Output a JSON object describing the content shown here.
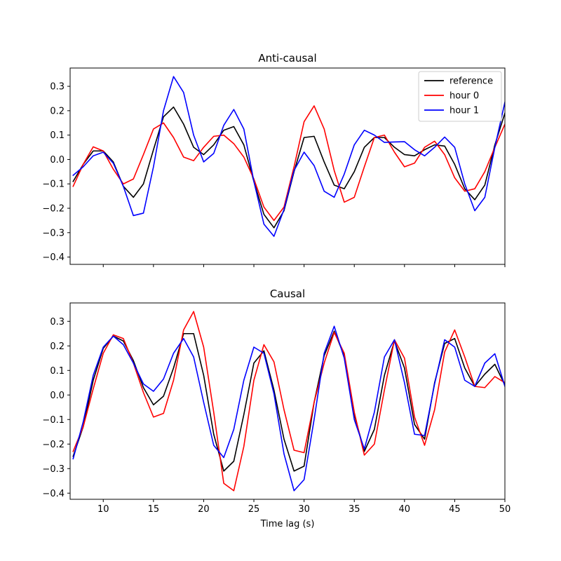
{
  "chart_data": [
    {
      "type": "line",
      "title": "Anti-causal",
      "xlabel": "",
      "ylabel": "",
      "xlim": [
        6.7,
        50
      ],
      "ylim": [
        -0.43,
        0.375
      ],
      "xticks": [
        10,
        15,
        20,
        25,
        30,
        35,
        40,
        45,
        50
      ],
      "show_xtick_labels": false,
      "yticks": [
        -0.4,
        -0.3,
        -0.2,
        -0.1,
        0.0,
        0.1,
        0.2,
        0.3
      ],
      "ytick_labels": [
        "−0.4",
        "−0.3",
        "−0.2",
        "−0.1",
        "0.0",
        "0.1",
        "0.2",
        "0.3"
      ],
      "legend_position": "top-right",
      "x": [
        7,
        8,
        9,
        10,
        11,
        12,
        13,
        14,
        15,
        16,
        17,
        18,
        19,
        20,
        21,
        22,
        23,
        24,
        25,
        26,
        27,
        28,
        29,
        30,
        31,
        32,
        33,
        34,
        35,
        36,
        37,
        38,
        39,
        40,
        41,
        42,
        43,
        44,
        45,
        46,
        47,
        48,
        49,
        50
      ],
      "series": [
        {
          "name": "reference",
          "color": "#000000",
          "values": [
            -0.09,
            -0.02,
            0.035,
            0.035,
            -0.01,
            -0.11,
            -0.155,
            -0.1,
            0.04,
            0.175,
            0.215,
            0.145,
            0.05,
            0.02,
            0.06,
            0.12,
            0.135,
            0.06,
            -0.09,
            -0.225,
            -0.28,
            -0.21,
            -0.05,
            0.09,
            0.095,
            -0.01,
            -0.105,
            -0.12,
            -0.05,
            0.05,
            0.09,
            0.09,
            0.05,
            0.02,
            0.015,
            0.04,
            0.06,
            0.055,
            -0.02,
            -0.12,
            -0.165,
            -0.105,
            0.06,
            0.19
          ]
        },
        {
          "name": "hour 0",
          "color": "#ff0000",
          "values": [
            -0.11,
            -0.02,
            0.052,
            0.035,
            -0.04,
            -0.1,
            -0.08,
            0.02,
            0.125,
            0.15,
            0.09,
            0.01,
            -0.005,
            0.05,
            0.095,
            0.1,
            0.065,
            0.01,
            -0.08,
            -0.195,
            -0.25,
            -0.195,
            -0.03,
            0.155,
            0.22,
            0.125,
            -0.045,
            -0.175,
            -0.155,
            -0.03,
            0.09,
            0.1,
            0.03,
            -0.03,
            -0.015,
            0.05,
            0.075,
            0.02,
            -0.075,
            -0.13,
            -0.12,
            -0.05,
            0.05,
            0.145
          ]
        },
        {
          "name": "hour 1",
          "color": "#0000ff",
          "values": [
            -0.065,
            -0.03,
            0.015,
            0.03,
            -0.015,
            -0.11,
            -0.23,
            -0.22,
            -0.03,
            0.2,
            0.34,
            0.275,
            0.1,
            -0.01,
            0.025,
            0.14,
            0.205,
            0.125,
            -0.09,
            -0.265,
            -0.315,
            -0.205,
            -0.045,
            0.03,
            -0.025,
            -0.13,
            -0.155,
            -0.06,
            0.06,
            0.12,
            0.1,
            0.07,
            0.072,
            0.073,
            0.04,
            0.015,
            0.05,
            0.092,
            0.05,
            -0.1,
            -0.21,
            -0.155,
            0.05,
            0.235
          ]
        }
      ]
    },
    {
      "type": "line",
      "title": "Causal",
      "xlabel": "Time lag (s)",
      "ylabel": "",
      "xlim": [
        6.7,
        50
      ],
      "ylim": [
        -0.425,
        0.375
      ],
      "xticks": [
        10,
        15,
        20,
        25,
        30,
        35,
        40,
        45,
        50
      ],
      "show_xtick_labels": true,
      "yticks": [
        -0.4,
        -0.3,
        -0.2,
        -0.1,
        0.0,
        0.1,
        0.2,
        0.3
      ],
      "ytick_labels": [
        "−0.4",
        "−0.3",
        "−0.2",
        "−0.1",
        "0.0",
        "0.1",
        "0.2",
        "0.3"
      ],
      "legend_position": "none",
      "x": [
        7,
        8,
        9,
        10,
        11,
        12,
        13,
        14,
        15,
        16,
        17,
        18,
        19,
        20,
        21,
        22,
        23,
        24,
        25,
        26,
        27,
        28,
        29,
        30,
        31,
        32,
        33,
        34,
        35,
        36,
        37,
        38,
        39,
        40,
        41,
        42,
        43,
        44,
        45,
        46,
        47,
        48,
        49,
        50
      ],
      "series": [
        {
          "name": "reference",
          "color": "#000000",
          "values": [
            -0.25,
            -0.13,
            0.06,
            0.19,
            0.24,
            0.22,
            0.14,
            0.03,
            -0.04,
            -0.005,
            0.11,
            0.25,
            0.25,
            0.08,
            -0.16,
            -0.31,
            -0.27,
            -0.08,
            0.13,
            0.18,
            0.02,
            -0.18,
            -0.31,
            -0.29,
            -0.03,
            0.16,
            0.26,
            0.16,
            -0.08,
            -0.23,
            -0.14,
            0.08,
            0.22,
            0.11,
            -0.12,
            -0.18,
            0.05,
            0.21,
            0.23,
            0.11,
            0.035,
            0.085,
            0.125,
            0.04
          ]
        },
        {
          "name": "hour 0",
          "color": "#ff0000",
          "values": [
            -0.23,
            -0.13,
            0.025,
            0.17,
            0.245,
            0.23,
            0.13,
            0.01,
            -0.09,
            -0.075,
            0.06,
            0.265,
            0.34,
            0.195,
            -0.07,
            -0.36,
            -0.39,
            -0.21,
            0.06,
            0.205,
            0.135,
            -0.06,
            -0.225,
            -0.235,
            -0.03,
            0.13,
            0.255,
            0.17,
            -0.07,
            -0.245,
            -0.2,
            0.02,
            0.225,
            0.15,
            -0.09,
            -0.205,
            -0.06,
            0.175,
            0.265,
            0.155,
            0.035,
            0.03,
            0.075,
            0.05
          ]
        },
        {
          "name": "hour 1",
          "color": "#0000ff",
          "values": [
            -0.26,
            -0.11,
            0.08,
            0.195,
            0.24,
            0.205,
            0.13,
            0.045,
            0.015,
            0.065,
            0.17,
            0.23,
            0.155,
            -0.03,
            -0.205,
            -0.255,
            -0.14,
            0.06,
            0.195,
            0.17,
            0.005,
            -0.24,
            -0.39,
            -0.345,
            -0.1,
            0.17,
            0.28,
            0.15,
            -0.1,
            -0.22,
            -0.07,
            0.155,
            0.225,
            0.05,
            -0.16,
            -0.165,
            0.045,
            0.225,
            0.195,
            0.06,
            0.035,
            0.13,
            0.168,
            0.035
          ]
        }
      ]
    }
  ]
}
